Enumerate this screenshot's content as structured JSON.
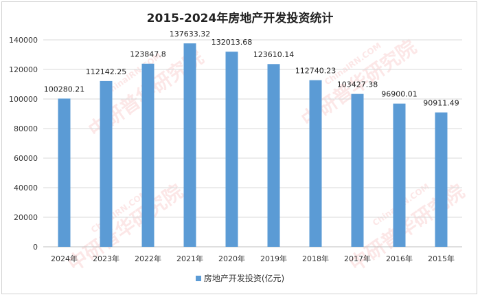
{
  "chart_data": {
    "type": "bar",
    "title": "2015-2024年房地产开发投资统计",
    "categories": [
      "2024年",
      "2023年",
      "2022年",
      "2021年",
      "2020年",
      "2019年",
      "2018年",
      "2017年",
      "2016年",
      "2015年"
    ],
    "series": [
      {
        "name": "房地产开发投资(亿元)",
        "values": [
          100280.21,
          112142.25,
          123847.8,
          137633.32,
          132013.68,
          123610.14,
          112740.23,
          103427.38,
          96900.01,
          90911.49
        ],
        "labels": [
          "100280.21",
          "112142.25",
          "123847.8",
          "137633.32",
          "132013.68",
          "123610.14",
          "112740.23",
          "103427.38",
          "96900.01",
          "90911.49"
        ]
      }
    ],
    "ylim": [
      0,
      140000
    ],
    "yticks": [
      0,
      20000,
      40000,
      60000,
      80000,
      100000,
      120000,
      140000
    ],
    "grid": true,
    "legend_position": "bottom",
    "bar_color": "#5b9bd5"
  },
  "watermark": {
    "site": "ChinaIRN.COM",
    "name": "中研普华研究院",
    "logo": "CIRN"
  }
}
